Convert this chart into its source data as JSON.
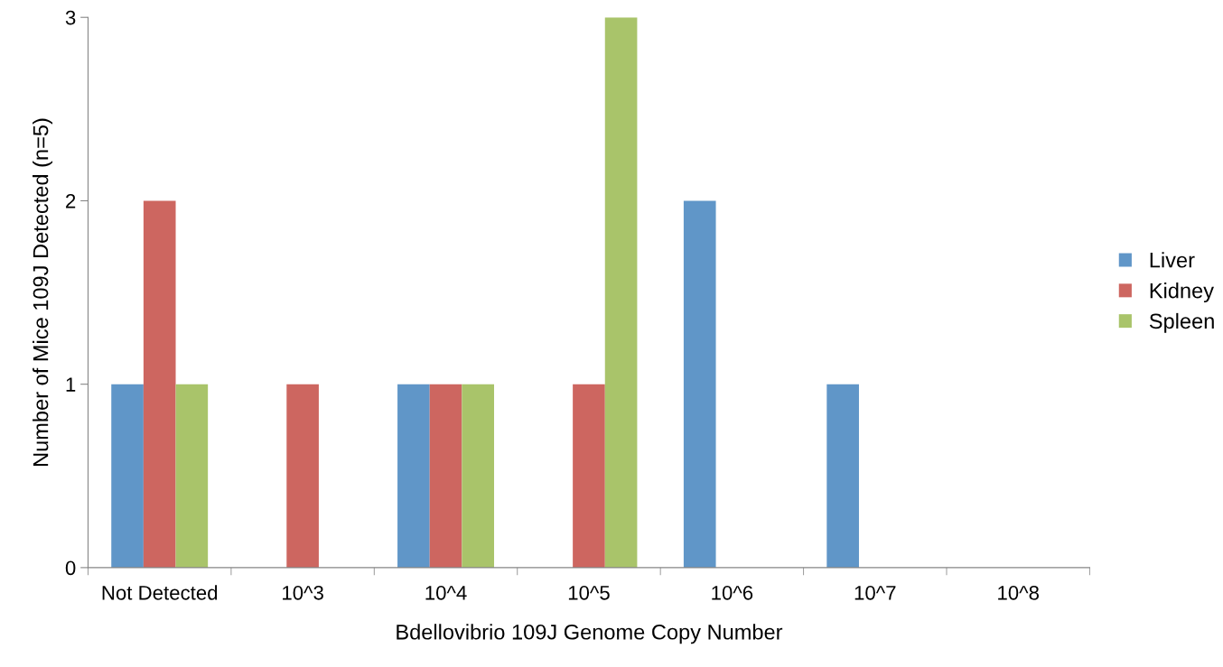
{
  "chart_data": {
    "type": "bar",
    "xlabel": "Bdellovibrio 109J Genome Copy Number",
    "ylabel": "Number of Mice 109J Detected (n=5)",
    "categories": [
      "Not Detected",
      "10^3",
      "10^4",
      "10^5",
      "10^6",
      "10^7",
      "10^8"
    ],
    "series": [
      {
        "name": "Liver",
        "color": "#6096c8",
        "values": [
          1,
          0,
          1,
          0,
          2,
          1,
          0
        ]
      },
      {
        "name": "Kidney",
        "color": "#cd6660",
        "values": [
          2,
          1,
          1,
          1,
          0,
          0,
          0
        ]
      },
      {
        "name": "Spleen",
        "color": "#a9c46a",
        "values": [
          1,
          0,
          1,
          3,
          0,
          0,
          0
        ]
      }
    ],
    "ylim": [
      0,
      3
    ],
    "yticks": [
      0,
      1,
      2,
      3
    ],
    "grid": false,
    "legend": "right"
  }
}
